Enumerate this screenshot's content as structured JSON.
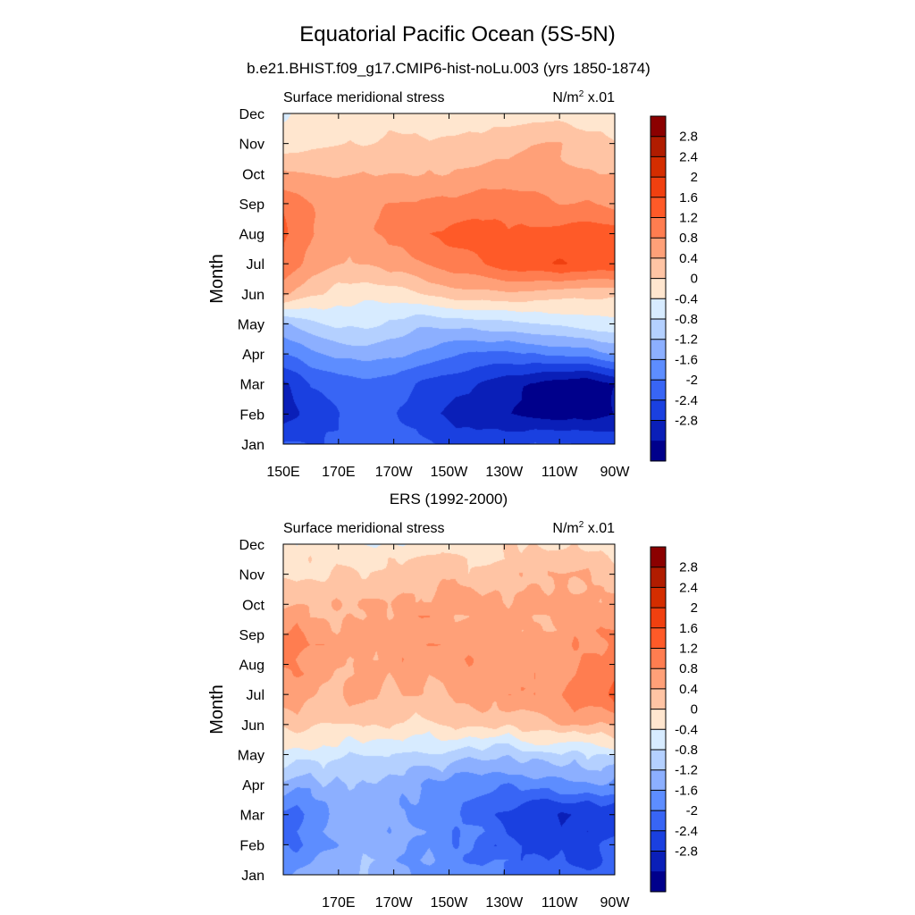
{
  "figure": {
    "title": "Equatorial Pacific Ocean (5S-5N)",
    "colorbar_levels": [
      "2.8",
      "2.4",
      "2",
      "1.6",
      "1.2",
      "0.8",
      "0.4",
      "0",
      "-0.4",
      "-0.8",
      "-1.2",
      "-1.6",
      "-2",
      "-2.4",
      "-2.8"
    ],
    "colorbar_colors": [
      "#8b0000",
      "#b01c00",
      "#d42d00",
      "#f04010",
      "#ff5a28",
      "#ff7d50",
      "#ffa078",
      "#ffc4a4",
      "#ffe6cf",
      "#d7ebff",
      "#b4d0ff",
      "#8cafff",
      "#5d8dff",
      "#3865f5",
      "#1a40e0",
      "#0a1fb8",
      "#00008b"
    ]
  },
  "chart_data": [
    {
      "type": "heatmap",
      "subtitle": "b.e21.BHIST.f09_g17.CMIP6-hist-noLu.003 (yrs 1850-1874)",
      "left_label": "Surface meridional stress",
      "right_label_base": "N/m",
      "right_label_sup": "2",
      "right_label_tail": " x.01",
      "ylabel": "Month",
      "xticks": [
        "150E",
        "170E",
        "170W",
        "150W",
        "130W",
        "110W",
        "90W"
      ],
      "yticks": [
        "Jan",
        "Feb",
        "Mar",
        "Apr",
        "May",
        "Jun",
        "Jul",
        "Aug",
        "Sep",
        "Oct",
        "Nov",
        "Dec"
      ],
      "x_range": [
        "150E",
        "90W"
      ],
      "y_range": [
        "Jan",
        "Dec"
      ],
      "grid": false,
      "legend": "right colorbar",
      "months": [
        "Jan",
        "Feb",
        "Mar",
        "Apr",
        "May",
        "Jun",
        "Jul",
        "Aug",
        "Sep",
        "Oct",
        "Nov",
        "Dec"
      ],
      "lons": [
        150,
        160,
        170,
        180,
        190,
        200,
        210,
        220,
        230,
        240,
        250,
        260,
        270
      ],
      "values": [
        [
          -1.9,
          -2.0,
          -1.9,
          -1.8,
          -1.8,
          -1.9,
          -2.1,
          -2.2,
          -2.1,
          -2.0,
          -2.0,
          -2.0,
          -2.1
        ],
        [
          -2.6,
          -2.2,
          -2.0,
          -1.9,
          -2.0,
          -2.3,
          -2.5,
          -2.7,
          -2.8,
          -2.9,
          -3.0,
          -3.0,
          -2.8
        ],
        [
          -2.5,
          -2.0,
          -1.8,
          -1.7,
          -1.8,
          -2.1,
          -2.2,
          -2.4,
          -2.6,
          -2.8,
          -3.0,
          -3.1,
          -2.8
        ],
        [
          -1.6,
          -1.3,
          -1.1,
          -1.0,
          -1.1,
          -1.3,
          -1.5,
          -1.7,
          -1.7,
          -1.6,
          -1.5,
          -1.4,
          -1.2
        ],
        [
          -0.9,
          -0.5,
          -0.3,
          -0.3,
          -0.5,
          -0.7,
          -0.7,
          -0.6,
          -0.5,
          -0.4,
          -0.3,
          -0.2,
          -0.1
        ],
        [
          0.9,
          0.5,
          0.2,
          0.1,
          0.2,
          0.4,
          0.6,
          0.7,
          0.7,
          0.7,
          0.6,
          0.5,
          0.5
        ],
        [
          1.6,
          1.0,
          0.8,
          0.8,
          1.0,
          1.2,
          1.4,
          1.5,
          1.8,
          1.9,
          2.0,
          2.0,
          1.9
        ],
        [
          1.7,
          1.2,
          1.0,
          1.1,
          1.3,
          1.5,
          1.7,
          1.8,
          1.7,
          1.7,
          1.8,
          1.9,
          1.8
        ],
        [
          1.5,
          1.2,
          1.1,
          1.1,
          1.2,
          1.3,
          1.3,
          1.4,
          1.4,
          1.3,
          1.2,
          1.2,
          1.1
        ],
        [
          0.9,
          0.8,
          0.8,
          0.8,
          0.8,
          0.8,
          0.8,
          0.9,
          1.0,
          1.0,
          0.9,
          0.8,
          0.8
        ],
        [
          0.1,
          0.3,
          0.4,
          0.4,
          0.5,
          0.5,
          0.5,
          0.5,
          0.6,
          0.8,
          0.8,
          0.6,
          0.4
        ],
        [
          -0.1,
          0.1,
          0.2,
          0.2,
          0.2,
          0.1,
          0.1,
          0.2,
          0.2,
          0.2,
          0.3,
          0.2,
          0.1
        ]
      ]
    },
    {
      "type": "heatmap",
      "subtitle": "ERS (1992-2000)",
      "left_label": "Surface meridional stress",
      "right_label_base": "N/m",
      "right_label_sup": "2",
      "right_label_tail": " x.01",
      "ylabel": "Month",
      "xticks": [
        "170E",
        "170W",
        "150W",
        "130W",
        "110W",
        "90W"
      ],
      "yticks": [
        "Jan",
        "Feb",
        "Mar",
        "Apr",
        "May",
        "Jun",
        "Jul",
        "Aug",
        "Sep",
        "Oct",
        "Nov",
        "Dec"
      ],
      "x_range": [
        "150E",
        "90W"
      ],
      "y_range": [
        "Jan",
        "Dec"
      ],
      "grid": false,
      "legend": "right colorbar",
      "months": [
        "Jan",
        "Feb",
        "Mar",
        "Apr",
        "May",
        "Jun",
        "Jul",
        "Aug",
        "Sep",
        "Oct",
        "Nov",
        "Dec"
      ],
      "lons": [
        150,
        160,
        170,
        180,
        190,
        200,
        210,
        220,
        230,
        240,
        250,
        260,
        270
      ],
      "values": [
        [
          -1.3,
          -1.1,
          -0.9,
          -0.8,
          -1.0,
          -1.2,
          -1.4,
          -1.5,
          -1.6,
          -1.7,
          -1.8,
          -1.9,
          -1.8
        ],
        [
          -1.7,
          -1.4,
          -1.0,
          -0.9,
          -1.1,
          -1.3,
          -1.5,
          -1.7,
          -1.9,
          -2.1,
          -2.2,
          -2.2,
          -2.0
        ],
        [
          -1.8,
          -1.5,
          -1.0,
          -1.0,
          -1.2,
          -1.4,
          -1.6,
          -1.8,
          -2.0,
          -2.2,
          -2.4,
          -2.5,
          -2.3
        ],
        [
          -1.0,
          -0.9,
          -0.8,
          -0.8,
          -1.0,
          -1.2,
          -1.3,
          -1.4,
          -1.5,
          -1.5,
          -1.4,
          -1.4,
          -1.3
        ],
        [
          -0.2,
          -0.2,
          -0.2,
          -0.3,
          -0.4,
          -0.5,
          -0.6,
          -0.6,
          -0.6,
          -0.6,
          -0.5,
          -0.4,
          -0.3
        ],
        [
          0.6,
          0.5,
          0.4,
          0.3,
          0.3,
          0.4,
          0.4,
          0.4,
          0.5,
          0.7,
          0.8,
          0.9,
          0.9
        ],
        [
          1.1,
          0.9,
          0.8,
          0.7,
          0.7,
          0.8,
          0.9,
          1.0,
          1.1,
          1.1,
          1.2,
          1.5,
          1.6
        ],
        [
          1.2,
          1.0,
          0.9,
          0.9,
          1.0,
          1.0,
          1.1,
          1.1,
          1.0,
          1.0,
          1.0,
          1.3,
          1.5
        ],
        [
          1.3,
          1.1,
          0.9,
          0.9,
          1.0,
          1.1,
          1.1,
          1.1,
          1.0,
          1.0,
          1.0,
          1.1,
          1.2
        ],
        [
          0.9,
          0.8,
          0.8,
          0.8,
          0.9,
          1.0,
          0.9,
          0.9,
          0.9,
          0.8,
          0.8,
          0.8,
          0.9
        ],
        [
          0.4,
          0.4,
          0.4,
          0.4,
          0.5,
          0.6,
          0.6,
          0.6,
          0.6,
          0.7,
          0.8,
          0.7,
          0.7
        ],
        [
          0.0,
          0.1,
          0.1,
          0.1,
          0.1,
          0.1,
          0.2,
          0.2,
          0.3,
          0.4,
          0.3,
          0.3,
          0.2
        ]
      ]
    }
  ]
}
